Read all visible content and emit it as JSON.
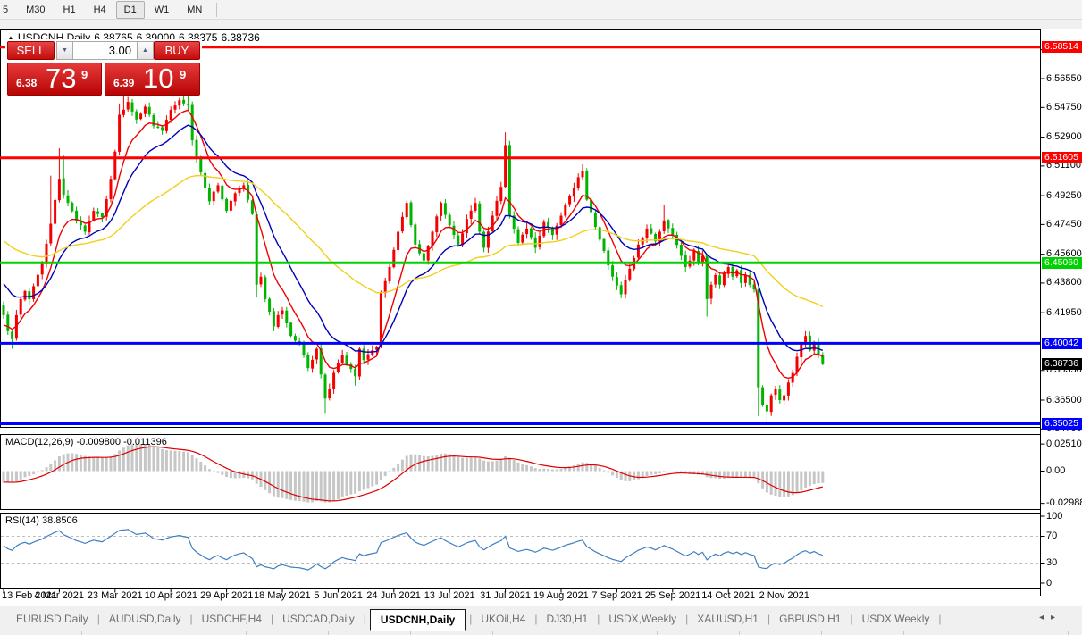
{
  "toolbar": {
    "timeframes": [
      {
        "label": "5",
        "active": false,
        "partial": true
      },
      {
        "label": "M30",
        "active": false
      },
      {
        "label": "H1",
        "active": false
      },
      {
        "label": "H4",
        "active": false
      },
      {
        "label": "D1",
        "active": true
      },
      {
        "label": "W1",
        "active": false
      },
      {
        "label": "MN",
        "active": false
      }
    ]
  },
  "chart_header": {
    "symbol": "USDCNH,Daily",
    "open": "6.38765",
    "high": "6.39000",
    "low": "6.38375",
    "close": "6.38736"
  },
  "trade_panel": {
    "sell_label": "SELL",
    "buy_label": "BUY",
    "volume": "3.00",
    "sell": {
      "prefix": "6.38",
      "big": "73",
      "sup": "9"
    },
    "buy": {
      "prefix": "6.39",
      "big": "10",
      "sup": "9"
    }
  },
  "chart_data": {
    "type": "candlestick",
    "symbol": "USDCNH",
    "timeframe": "Daily",
    "ohlc": {
      "open": 6.38765,
      "high": 6.39,
      "low": 6.38375,
      "close": 6.38736
    },
    "price_axis_ticks": [
      "6.58350",
      "6.56550",
      "6.54750",
      "6.52900",
      "6.51100",
      "6.49250",
      "6.47450",
      "6.45600",
      "6.43800",
      "6.41950",
      "6.38350",
      "6.36500",
      "6.34700"
    ],
    "hlines": [
      {
        "price": 6.58514,
        "label": "6.58514",
        "color": "#ff0000"
      },
      {
        "price": 6.51605,
        "label": "6.51605",
        "color": "#ff0000"
      },
      {
        "price": 6.4506,
        "label": "6.45060",
        "color": "#00d200"
      },
      {
        "price": 6.40042,
        "label": "6.40042",
        "color": "#0000ff"
      },
      {
        "price": 6.35025,
        "label": "6.35025",
        "color": "#0000ff"
      }
    ],
    "current_price": {
      "value": 6.38736,
      "label": "6.38736",
      "box_color": "#000000"
    },
    "x_labels": [
      "13 Feb 2021",
      "4 Mar 2021",
      "23 Mar 2021",
      "10 Apr 2021",
      "29 Apr 2021",
      "18 May 2021",
      "5 Jun 2021",
      "24 Jun 2021",
      "13 Jul 2021",
      "31 Jul 2021",
      "19 Aug 2021",
      "7 Sep 2021",
      "25 Sep 2021",
      "14 Oct 2021",
      "2 Nov 2021"
    ],
    "x_label_interval": 13,
    "candles": {
      "count": 192,
      "up_color": "#f40000",
      "down_color": "#00b400",
      "close_waypoints": [
        [
          0,
          6.418
        ],
        [
          1,
          6.408
        ],
        [
          2,
          6.403
        ],
        [
          3,
          6.418
        ],
        [
          4,
          6.428
        ],
        [
          5,
          6.433
        ],
        [
          6,
          6.428
        ],
        [
          7,
          6.436
        ],
        [
          9,
          6.45
        ],
        [
          11,
          6.475
        ],
        [
          13,
          6.503
        ],
        [
          14,
          6.493
        ],
        [
          15,
          6.488
        ],
        [
          17,
          6.477
        ],
        [
          19,
          6.47
        ],
        [
          21,
          6.483
        ],
        [
          23,
          6.479
        ],
        [
          25,
          6.503
        ],
        [
          26,
          6.52
        ],
        [
          27,
          6.543
        ],
        [
          29,
          6.551
        ],
        [
          31,
          6.54
        ],
        [
          33,
          6.548
        ],
        [
          35,
          6.536
        ],
        [
          37,
          6.533
        ],
        [
          39,
          6.546
        ],
        [
          41,
          6.552
        ],
        [
          43,
          6.549
        ],
        [
          44,
          6.527
        ],
        [
          45,
          6.516
        ],
        [
          46,
          6.507
        ],
        [
          47,
          6.497
        ],
        [
          48,
          6.489
        ],
        [
          49,
          6.495
        ],
        [
          50,
          6.499
        ],
        [
          52,
          6.483
        ],
        [
          54,
          6.494
        ],
        [
          56,
          6.499
        ],
        [
          57,
          6.49
        ],
        [
          58,
          6.481
        ],
        [
          59,
          6.437
        ],
        [
          60,
          6.442
        ],
        [
          61,
          6.428
        ],
        [
          63,
          6.411
        ],
        [
          64,
          6.418
        ],
        [
          65,
          6.421
        ],
        [
          67,
          6.405
        ],
        [
          69,
          6.4
        ],
        [
          71,
          6.385
        ],
        [
          73,
          6.397
        ],
        [
          74,
          6.381
        ],
        [
          75,
          6.366
        ],
        [
          76,
          6.372
        ],
        [
          77,
          6.382
        ],
        [
          79,
          6.393
        ],
        [
          80,
          6.387
        ],
        [
          82,
          6.38
        ],
        [
          83,
          6.397
        ],
        [
          84,
          6.39
        ],
        [
          86,
          6.396
        ],
        [
          87,
          6.398
        ],
        [
          88,
          6.432
        ],
        [
          90,
          6.448
        ],
        [
          92,
          6.47
        ],
        [
          94,
          6.488
        ],
        [
          96,
          6.462
        ],
        [
          98,
          6.452
        ],
        [
          100,
          6.47
        ],
        [
          102,
          6.488
        ],
        [
          104,
          6.474
        ],
        [
          106,
          6.462
        ],
        [
          108,
          6.478
        ],
        [
          110,
          6.488
        ],
        [
          111,
          6.47
        ],
        [
          112,
          6.46
        ],
        [
          114,
          6.48
        ],
        [
          116,
          6.498
        ],
        [
          117,
          6.524
        ],
        [
          118,
          6.48
        ],
        [
          120,
          6.463
        ],
        [
          122,
          6.472
        ],
        [
          124,
          6.46
        ],
        [
          126,
          6.476
        ],
        [
          128,
          6.468
        ],
        [
          130,
          6.48
        ],
        [
          132,
          6.492
        ],
        [
          134,
          6.504
        ],
        [
          135,
          6.508
        ],
        [
          136,
          6.49
        ],
        [
          138,
          6.473
        ],
        [
          140,
          6.458
        ],
        [
          142,
          6.442
        ],
        [
          144,
          6.431
        ],
        [
          145,
          6.44
        ],
        [
          146,
          6.447
        ],
        [
          148,
          6.462
        ],
        [
          150,
          6.472
        ],
        [
          152,
          6.464
        ],
        [
          154,
          6.477
        ],
        [
          156,
          6.468
        ],
        [
          158,
          6.455
        ],
        [
          159,
          6.448
        ],
        [
          160,
          6.452
        ],
        [
          161,
          6.458
        ],
        [
          162,
          6.45
        ],
        [
          163,
          6.455
        ],
        [
          164,
          6.428
        ],
        [
          165,
          6.437
        ],
        [
          166,
          6.443
        ],
        [
          167,
          6.437
        ],
        [
          168,
          6.444
        ],
        [
          169,
          6.448
        ],
        [
          170,
          6.442
        ],
        [
          171,
          6.446
        ],
        [
          172,
          6.438
        ],
        [
          173,
          6.443
        ],
        [
          174,
          6.437
        ],
        [
          175,
          6.434
        ],
        [
          176,
          6.373
        ],
        [
          177,
          6.362
        ],
        [
          178,
          6.358
        ],
        [
          179,
          6.368
        ],
        [
          180,
          6.372
        ],
        [
          181,
          6.365
        ],
        [
          182,
          6.368
        ],
        [
          183,
          6.376
        ],
        [
          184,
          6.382
        ],
        [
          185,
          6.392
        ],
        [
          186,
          6.4
        ],
        [
          187,
          6.405
        ],
        [
          188,
          6.396
        ],
        [
          189,
          6.401
        ],
        [
          190,
          6.393
        ],
        [
          191,
          6.38736
        ]
      ],
      "wick_spikes": [
        [
          2,
          "l",
          6.397
        ],
        [
          11,
          "h",
          6.505
        ],
        [
          13,
          "h",
          6.522
        ],
        [
          14,
          "h",
          6.518
        ],
        [
          27,
          "h",
          6.55
        ],
        [
          28,
          "h",
          6.557
        ],
        [
          43,
          "h",
          6.558
        ],
        [
          59,
          "l",
          6.429
        ],
        [
          75,
          "l",
          6.357
        ],
        [
          82,
          "l",
          6.374
        ],
        [
          117,
          "h",
          6.532
        ],
        [
          135,
          "h",
          6.512
        ],
        [
          154,
          "h",
          6.487
        ],
        [
          164,
          "l",
          6.417
        ],
        [
          176,
          "l",
          6.355
        ],
        [
          178,
          "l",
          6.352
        ],
        [
          187,
          "h",
          6.408
        ]
      ]
    },
    "moving_averages": [
      {
        "period": 8,
        "color": "#ee0000",
        "init": 6.41
      },
      {
        "period": 17,
        "color": "#0000bb",
        "init": 6.44
      },
      {
        "period": 55,
        "color": "#f2cf1c",
        "init": 6.466
      }
    ],
    "macd": {
      "label": "MACD(12,26,9)",
      "values_text": "-0.009800 -0.011396",
      "axis_ticks": [
        "0.025108",
        "0.00",
        "-0.029881"
      ],
      "bar_color": "#c6c6c6",
      "signal_color": "#e00000"
    },
    "rsi": {
      "label": "RSI(14)",
      "value_text": "38.8506",
      "axis_ticks": [
        "100",
        "70",
        "30",
        "0"
      ],
      "levels": [
        70,
        30
      ],
      "line_color": "#3e7fc1"
    }
  },
  "tabs": {
    "items": [
      {
        "label": "EURUSD,Daily",
        "active": false
      },
      {
        "label": "AUDUSD,Daily",
        "active": false
      },
      {
        "label": "USDCHF,H4",
        "active": false
      },
      {
        "label": "USDCAD,Daily",
        "active": false
      },
      {
        "label": "USDCNH,Daily",
        "active": true
      },
      {
        "label": "UKOil,H4",
        "active": false
      },
      {
        "label": "DJ30,H1",
        "active": false
      },
      {
        "label": "USDX,Weekly",
        "active": false
      },
      {
        "label": "XAUUSD,H1",
        "active": false
      },
      {
        "label": "GBPUSD,H1",
        "active": false
      },
      {
        "label": "USDX,Weekly",
        "active": false
      }
    ],
    "scroll_left": "◂",
    "scroll_right": "▸"
  }
}
